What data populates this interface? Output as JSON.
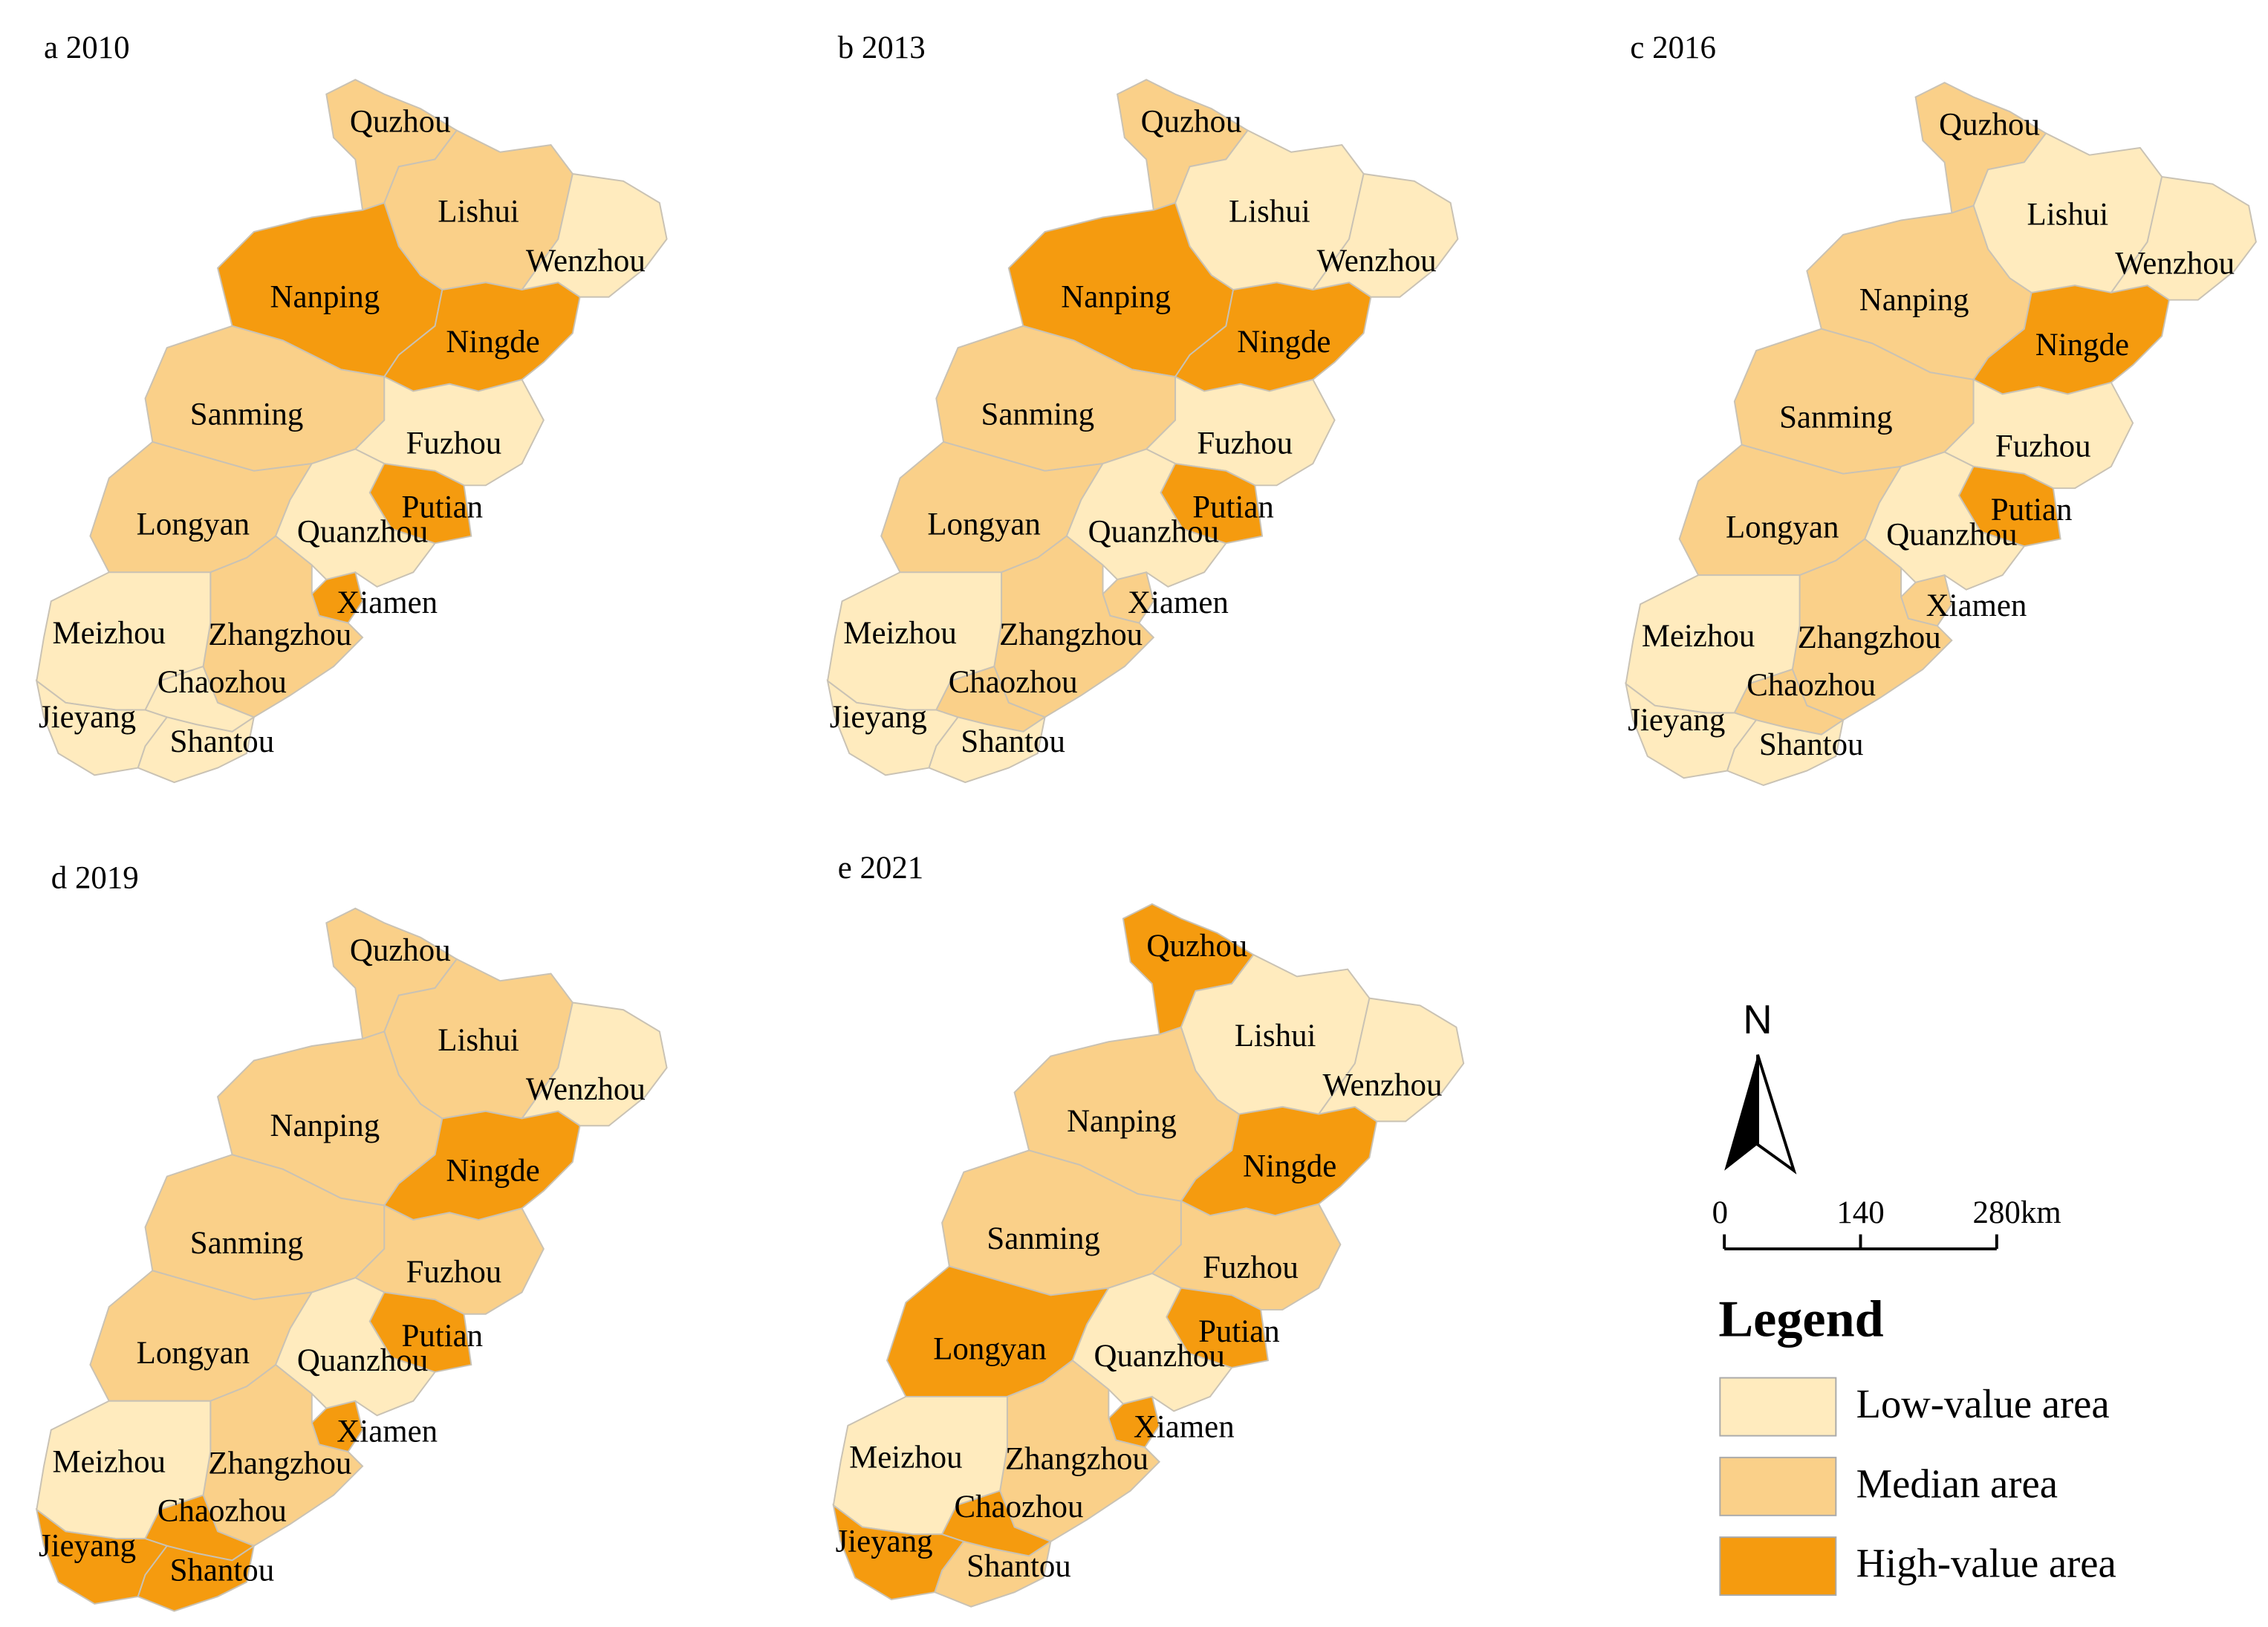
{
  "maps": [
    {
      "title": "a 2010",
      "regions": [
        {
          "name": "Quzhou",
          "color": "#fad089"
        },
        {
          "name": "Lishui",
          "color": "#fad089"
        },
        {
          "name": "Wenzhou",
          "color": "#ffebbe"
        },
        {
          "name": "Nanping",
          "color": "#f59b0f"
        },
        {
          "name": "Ningde",
          "color": "#f59b0f"
        },
        {
          "name": "Sanming",
          "color": "#fad089"
        },
        {
          "name": "Fuzhou",
          "color": "#ffebbe"
        },
        {
          "name": "Longyan",
          "color": "#fad089"
        },
        {
          "name": "Quanzhou",
          "color": "#ffebbe"
        },
        {
          "name": "Putian",
          "color": "#f59b0f"
        },
        {
          "name": "Xiamen",
          "color": "#f59b0f"
        },
        {
          "name": "Zhangzhou",
          "color": "#fad089"
        },
        {
          "name": "Meizhou",
          "color": "#ffebbe"
        },
        {
          "name": "Chaozhou",
          "color": "#ffebbe"
        },
        {
          "name": "Jieyang",
          "color": "#ffebbe"
        },
        {
          "name": "Shantou",
          "color": "#ffebbe"
        }
      ]
    },
    {
      "title": "b 2013",
      "regions": [
        {
          "name": "Quzhou",
          "color": "#fad089"
        },
        {
          "name": "Lishui",
          "color": "#ffebbe"
        },
        {
          "name": "Wenzhou",
          "color": "#ffebbe"
        },
        {
          "name": "Nanping",
          "color": "#f59b0f"
        },
        {
          "name": "Ningde",
          "color": "#f59b0f"
        },
        {
          "name": "Sanming",
          "color": "#fad089"
        },
        {
          "name": "Fuzhou",
          "color": "#ffebbe"
        },
        {
          "name": "Longyan",
          "color": "#fad089"
        },
        {
          "name": "Quanzhou",
          "color": "#ffebbe"
        },
        {
          "name": "Putian",
          "color": "#f59b0f"
        },
        {
          "name": "Xiamen",
          "color": "#fad089"
        },
        {
          "name": "Zhangzhou",
          "color": "#fad089"
        },
        {
          "name": "Meizhou",
          "color": "#ffebbe"
        },
        {
          "name": "Chaozhou",
          "color": "#fad089"
        },
        {
          "name": "Jieyang",
          "color": "#ffebbe"
        },
        {
          "name": "Shantou",
          "color": "#ffebbe"
        }
      ]
    },
    {
      "title": "c 2016",
      "regions": [
        {
          "name": "Quzhou",
          "color": "#fad089"
        },
        {
          "name": "Lishui",
          "color": "#ffebbe"
        },
        {
          "name": "Wenzhou",
          "color": "#ffebbe"
        },
        {
          "name": "Nanping",
          "color": "#fad089"
        },
        {
          "name": "Ningde",
          "color": "#f59b0f"
        },
        {
          "name": "Sanming",
          "color": "#fad089"
        },
        {
          "name": "Fuzhou",
          "color": "#ffebbe"
        },
        {
          "name": "Longyan",
          "color": "#fad089"
        },
        {
          "name": "Quanzhou",
          "color": "#ffebbe"
        },
        {
          "name": "Putian",
          "color": "#f59b0f"
        },
        {
          "name": "Xiamen",
          "color": "#fad089"
        },
        {
          "name": "Zhangzhou",
          "color": "#fad089"
        },
        {
          "name": "Meizhou",
          "color": "#ffebbe"
        },
        {
          "name": "Chaozhou",
          "color": "#fad089"
        },
        {
          "name": "Jieyang",
          "color": "#ffebbe"
        },
        {
          "name": "Shantou",
          "color": "#ffebbe"
        }
      ]
    },
    {
      "title": "d 2019",
      "regions": [
        {
          "name": "Quzhou",
          "color": "#fad089"
        },
        {
          "name": "Lishui",
          "color": "#fad089"
        },
        {
          "name": "Wenzhou",
          "color": "#ffebbe"
        },
        {
          "name": "Nanping",
          "color": "#fad089"
        },
        {
          "name": "Ningde",
          "color": "#f59b0f"
        },
        {
          "name": "Sanming",
          "color": "#fad089"
        },
        {
          "name": "Fuzhou",
          "color": "#fad089"
        },
        {
          "name": "Longyan",
          "color": "#fad089"
        },
        {
          "name": "Quanzhou",
          "color": "#ffebbe"
        },
        {
          "name": "Putian",
          "color": "#f59b0f"
        },
        {
          "name": "Xiamen",
          "color": "#f59b0f"
        },
        {
          "name": "Zhangzhou",
          "color": "#fad089"
        },
        {
          "name": "Meizhou",
          "color": "#ffebbe"
        },
        {
          "name": "Chaozhou",
          "color": "#f59b0f"
        },
        {
          "name": "Jieyang",
          "color": "#f59b0f"
        },
        {
          "name": "Shantou",
          "color": "#f59b0f"
        }
      ]
    },
    {
      "title": "e 2021",
      "regions": [
        {
          "name": "Quzhou",
          "color": "#f59b0f"
        },
        {
          "name": "Lishui",
          "color": "#ffebbe"
        },
        {
          "name": "Wenzhou",
          "color": "#ffebbe"
        },
        {
          "name": "Nanping",
          "color": "#fad089"
        },
        {
          "name": "Ningde",
          "color": "#f59b0f"
        },
        {
          "name": "Sanming",
          "color": "#fad089"
        },
        {
          "name": "Fuzhou",
          "color": "#fad089"
        },
        {
          "name": "Longyan",
          "color": "#f59b0f"
        },
        {
          "name": "Quanzhou",
          "color": "#ffebbe"
        },
        {
          "name": "Putian",
          "color": "#f59b0f"
        },
        {
          "name": "Xiamen",
          "color": "#f59b0f"
        },
        {
          "name": "Zhangzhou",
          "color": "#fad089"
        },
        {
          "name": "Meizhou",
          "color": "#ffebbe"
        },
        {
          "name": "Chaozhou",
          "color": "#f59b0f"
        },
        {
          "name": "Jieyang",
          "color": "#f59b0f"
        },
        {
          "name": "Shantou",
          "color": "#fad089"
        }
      ]
    }
  ],
  "north": "N",
  "scale_bar": {
    "labels": [
      "0",
      "140",
      "280km"
    ]
  },
  "legend": {
    "title": "Legend",
    "items": [
      {
        "label": "Low-value area",
        "color": "#ffebbe"
      },
      {
        "label": "Median area",
        "color": "#fad089"
      },
      {
        "label": "High-value area",
        "color": "#f59b0f"
      }
    ]
  }
}
